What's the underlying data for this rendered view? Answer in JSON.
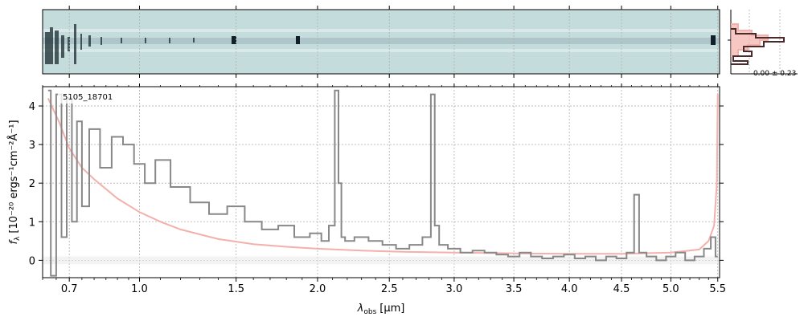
{
  "chart_data": {
    "type": "line",
    "object_label": "5105_18701",
    "xlabel_main": "λ",
    "xlabel_sub": "obs",
    "xlabel_unit": "[μm]",
    "ylabel_main": "f",
    "ylabel_sub": "λ",
    "ylabel_unit": "[10⁻²⁰ ergs⁻¹cm⁻²Å⁻¹]",
    "x_scale": "sqrt",
    "xlim": [
      0.6,
      5.52
    ],
    "ylim": [
      -0.45,
      4.5
    ],
    "x_ticks": [
      "0.7",
      "1.0",
      "1.5",
      "2.0",
      "2.5",
      "3.0",
      "3.5",
      "4.0",
      "4.5",
      "5.0",
      "5.5"
    ],
    "y_ticks": [
      "0",
      "1",
      "2",
      "3",
      "4"
    ],
    "grid": true,
    "colors": {
      "spectrum": "#888888",
      "model": "#f4b0aa",
      "panel_2d_background": "#c5dcdc",
      "histogram_data": "#4a2a2a",
      "histogram_model": "#f4b0aa"
    },
    "series": [
      {
        "role": "observed",
        "x": [
          0.62,
          0.64,
          0.66,
          0.68,
          0.7,
          0.72,
          0.74,
          0.76,
          0.8,
          0.85,
          0.9,
          0.95,
          1.0,
          1.05,
          1.1,
          1.2,
          1.3,
          1.4,
          1.5,
          1.6,
          1.7,
          1.8,
          1.9,
          2.0,
          2.05,
          2.1,
          2.13,
          2.15,
          2.17,
          2.2,
          2.3,
          2.4,
          2.5,
          2.6,
          2.7,
          2.8,
          2.83,
          2.86,
          2.9,
          3.0,
          3.1,
          3.2,
          3.3,
          3.4,
          3.5,
          3.6,
          3.7,
          3.8,
          3.9,
          4.0,
          4.1,
          4.2,
          4.3,
          4.4,
          4.5,
          4.6,
          4.65,
          4.7,
          4.8,
          4.9,
          5.0,
          5.1,
          5.2,
          5.3,
          5.4,
          5.45,
          5.5
        ],
        "y": [
          4.4,
          -0.4,
          4.3,
          0.6,
          4.2,
          1.0,
          3.6,
          1.4,
          3.4,
          2.4,
          3.2,
          3.0,
          2.5,
          2.0,
          2.6,
          1.9,
          1.5,
          1.2,
          1.4,
          1.0,
          0.8,
          0.9,
          0.6,
          0.7,
          0.5,
          0.9,
          4.4,
          2.0,
          0.6,
          0.5,
          0.6,
          0.5,
          0.4,
          0.3,
          0.4,
          0.6,
          4.3,
          0.9,
          0.4,
          0.3,
          0.2,
          0.25,
          0.2,
          0.15,
          0.1,
          0.2,
          0.1,
          0.05,
          0.1,
          0.15,
          0.05,
          0.1,
          0.0,
          0.1,
          0.05,
          0.2,
          1.7,
          0.2,
          0.1,
          0.0,
          0.1,
          0.2,
          0.0,
          0.1,
          0.3,
          0.6,
          0.1
        ]
      },
      {
        "role": "model",
        "x": [
          0.62,
          0.66,
          0.7,
          0.75,
          0.8,
          0.9,
          1.0,
          1.1,
          1.2,
          1.4,
          1.6,
          1.8,
          2.0,
          2.3,
          2.6,
          3.0,
          3.5,
          4.0,
          4.5,
          5.0,
          5.3,
          5.4,
          5.46,
          5.49,
          5.5
        ],
        "y": [
          4.2,
          3.6,
          2.9,
          2.4,
          2.1,
          1.6,
          1.25,
          1.0,
          0.8,
          0.55,
          0.42,
          0.35,
          0.3,
          0.25,
          0.22,
          0.2,
          0.18,
          0.17,
          0.17,
          0.2,
          0.28,
          0.5,
          0.9,
          2.0,
          4.3
        ]
      }
    ],
    "side_panel": {
      "label": "-0.00 ± 0.23"
    }
  }
}
